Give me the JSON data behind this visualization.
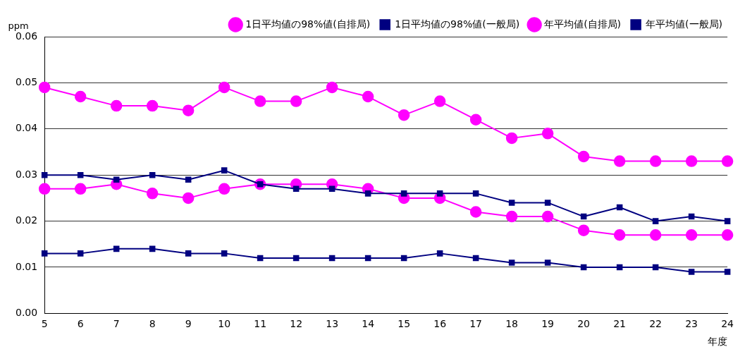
{
  "chart_data": {
    "type": "line",
    "ylabel": "ppm",
    "xlabel": "年度",
    "categories": [
      "5",
      "6",
      "7",
      "8",
      "9",
      "10",
      "11",
      "12",
      "13",
      "14",
      "15",
      "16",
      "17",
      "18",
      "19",
      "20",
      "21",
      "22",
      "23",
      "24"
    ],
    "series": [
      {
        "name": "1日平均値の98%値(自排局)",
        "color": "#ff00ff",
        "marker": "circle",
        "values": [
          0.049,
          0.047,
          0.045,
          0.045,
          0.044,
          0.049,
          0.046,
          0.046,
          0.049,
          0.047,
          0.043,
          0.046,
          0.042,
          0.038,
          0.039,
          0.034,
          0.033,
          0.033,
          0.033,
          0.033
        ]
      },
      {
        "name": "1日平均値の98%値(一般局)",
        "color": "#000080",
        "marker": "square",
        "values": [
          0.03,
          0.03,
          0.029,
          0.03,
          0.029,
          0.031,
          0.028,
          0.027,
          0.027,
          0.026,
          0.026,
          0.026,
          0.026,
          0.024,
          0.024,
          0.021,
          0.023,
          0.02,
          0.021,
          0.02
        ]
      },
      {
        "name": "年平均値(自排局)",
        "color": "#ff00ff",
        "marker": "circle",
        "values": [
          0.027,
          0.027,
          0.028,
          0.026,
          0.025,
          0.027,
          0.028,
          0.028,
          0.028,
          0.027,
          0.025,
          0.025,
          0.022,
          0.021,
          0.021,
          0.018,
          0.017,
          0.017,
          0.017,
          0.017
        ]
      },
      {
        "name": "年平均値(一般局)",
        "color": "#000080",
        "marker": "square",
        "values": [
          0.013,
          0.013,
          0.014,
          0.014,
          0.013,
          0.013,
          0.012,
          0.012,
          0.012,
          0.012,
          0.012,
          0.013,
          0.012,
          0.011,
          0.011,
          0.01,
          0.01,
          0.01,
          0.009,
          0.009
        ]
      }
    ],
    "ylim": [
      0,
      0.06
    ],
    "yticks": [
      {
        "value": 0,
        "label": "0.00"
      },
      {
        "value": 0.01,
        "label": "0.01"
      },
      {
        "value": 0.02,
        "label": "0.02"
      },
      {
        "value": 0.03,
        "label": "0.03"
      },
      {
        "value": 0.04,
        "label": "0.04"
      },
      {
        "value": 0.05,
        "label": "0.05"
      },
      {
        "value": 0.06,
        "label": "0.06"
      }
    ],
    "grid": "y",
    "legend": "top right",
    "line_style": "solid"
  }
}
